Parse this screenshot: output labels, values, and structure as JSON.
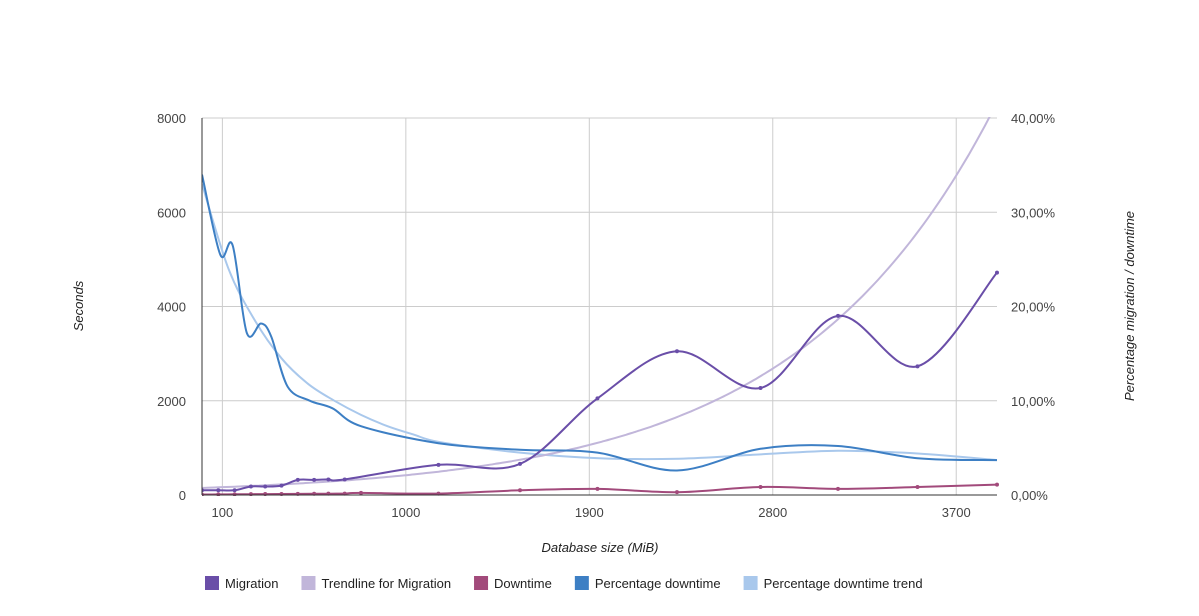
{
  "chart_data": {
    "type": "line",
    "xlabel": "Database size (MiB)",
    "ylabel_left": "Seconds",
    "ylabel_right": "Percentage migration / downtime",
    "x_ticks": [
      100,
      1000,
      1900,
      2800,
      3700
    ],
    "x_tick_labels": [
      "100",
      "1000",
      "1900",
      "2800",
      "3700"
    ],
    "xlim": [
      0,
      3900
    ],
    "y_left_ticks": [
      0,
      2000,
      4000,
      6000,
      8000
    ],
    "y_left_tick_labels": [
      "0",
      "2000",
      "4000",
      "6000",
      "8000"
    ],
    "ylim_left": [
      0,
      8000
    ],
    "y_right_ticks": [
      0,
      10,
      20,
      30,
      40
    ],
    "y_right_tick_labels": [
      "0,00%",
      "10,00%",
      "20,00%",
      "30,00%",
      "40,00%"
    ],
    "ylim_right": [
      0,
      40
    ],
    "grid": true,
    "legend_position": "bottom",
    "series": [
      {
        "name": "Migration",
        "axis": "left",
        "color": "#6a4ea8",
        "markers": true,
        "x": [
          0,
          80,
          160,
          240,
          310,
          390,
          470,
          550,
          620,
          700,
          1160,
          1560,
          1940,
          2330,
          2740,
          3120,
          3510,
          3900
        ],
        "y": [
          100,
          100,
          100,
          180,
          180,
          200,
          320,
          320,
          330,
          330,
          640,
          660,
          2050,
          3050,
          2270,
          3800,
          2730,
          4720
        ]
      },
      {
        "name": "Trendline for Migration",
        "axis": "left",
        "color": "#c1b6da",
        "markers": false,
        "trend": "exponential",
        "a": 150,
        "b": 0.00103
      },
      {
        "name": "Downtime",
        "axis": "left",
        "color": "#a24a7b",
        "markers": true,
        "x": [
          0,
          80,
          160,
          240,
          310,
          390,
          470,
          550,
          620,
          700,
          780,
          1160,
          1560,
          1940,
          2330,
          2740,
          3120,
          3510,
          3900
        ],
        "y": [
          10,
          12,
          14,
          18,
          20,
          22,
          24,
          26,
          28,
          30,
          45,
          30,
          100,
          130,
          60,
          170,
          130,
          170,
          220
        ]
      },
      {
        "name": "Percentage downtime",
        "axis": "right",
        "color": "#3d7fc4",
        "markers": false,
        "x": [
          0,
          90,
          150,
          220,
          290,
          340,
          420,
          530,
          640,
          780,
          1160,
          1560,
          1940,
          2330,
          2740,
          3120,
          3510,
          3900
        ],
        "y": [
          34,
          25.5,
          26.5,
          17.2,
          18.2,
          16.8,
          11.5,
          10,
          9.2,
          7.3,
          5.5,
          4.8,
          4.5,
          2.6,
          4.9,
          5.2,
          3.9,
          3.7
        ]
      },
      {
        "name": "Percentage downtime trend",
        "axis": "right",
        "color": "#a9c8ec",
        "markers": false,
        "x": [
          0,
          130,
          260,
          390,
          520,
          650,
          780,
          910,
          1040,
          1170,
          1560,
          1950,
          2340,
          2730,
          3120,
          3510,
          3900
        ],
        "y": [
          33,
          24,
          18.5,
          14.5,
          11.8,
          10,
          8.5,
          7.3,
          6.4,
          5.6,
          4.5,
          3.9,
          3.85,
          4.3,
          4.7,
          4.4,
          3.7
        ]
      }
    ]
  }
}
